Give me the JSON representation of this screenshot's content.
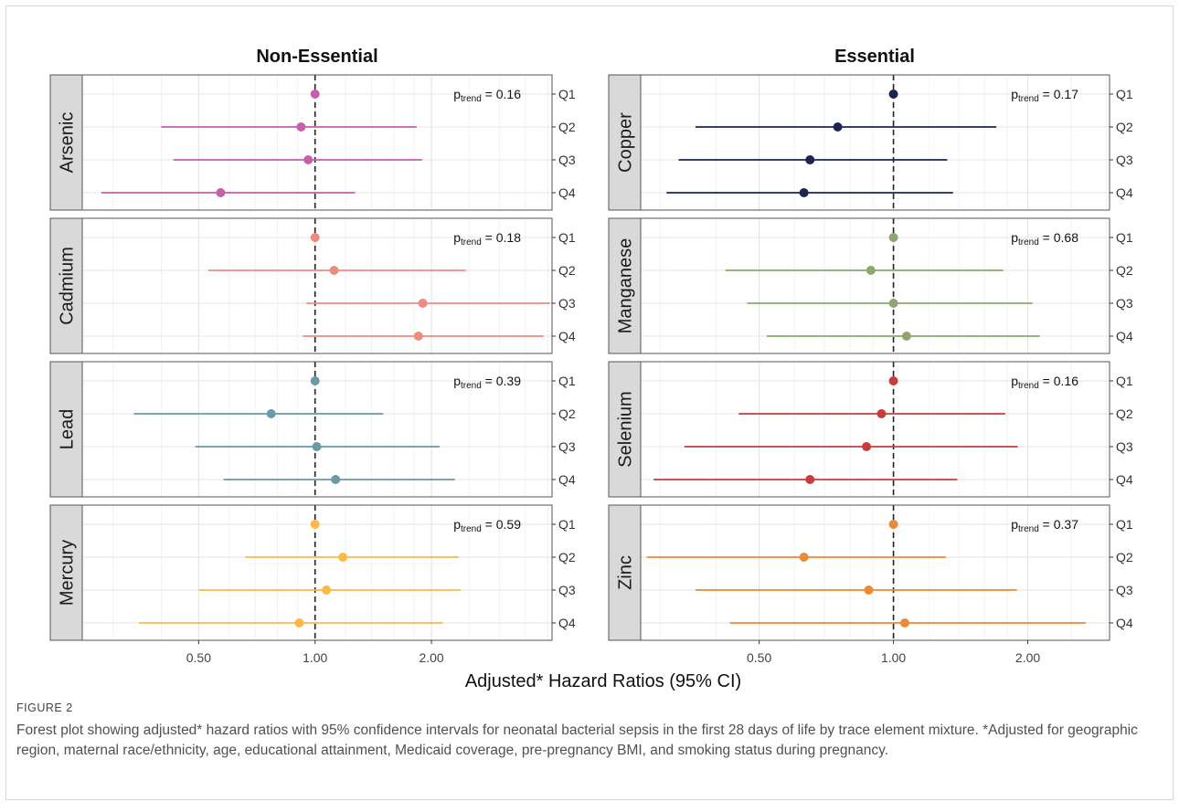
{
  "chart_data": {
    "type": "forest",
    "xlabel": "Adjusted* Hazard Ratios (95% CI)",
    "x_scale": "log",
    "reference_line": 1.0,
    "x_ticks": [
      "0.50",
      "1.00",
      "2.00"
    ],
    "x_tick_values": [
      0.5,
      1.0,
      2.0
    ],
    "row_labels": [
      "Q1",
      "Q2",
      "Q3",
      "Q4"
    ],
    "grid": true,
    "groups": [
      {
        "title": "Non-Essential",
        "xlim": [
          0.25,
          4.1
        ],
        "panels": [
          {
            "strip": "Arsenic",
            "ptrend_label": "p",
            "ptrend_sub": "trend",
            "ptrend_value": " = 0.16",
            "color": "#c85fae",
            "estimates": [
              1.0,
              0.92,
              0.96,
              0.57
            ],
            "lower": [
              null,
              0.4,
              0.43,
              0.28
            ],
            "upper": [
              null,
              1.83,
              1.89,
              1.27
            ]
          },
          {
            "strip": "Cadmium",
            "ptrend_label": "p",
            "ptrend_sub": "trend",
            "ptrend_value": " = 0.18",
            "color": "#ee8b80",
            "estimates": [
              1.0,
              1.12,
              1.9,
              1.85
            ],
            "lower": [
              null,
              0.53,
              0.95,
              0.93
            ],
            "upper": [
              null,
              2.45,
              4.05,
              3.9
            ]
          },
          {
            "strip": "Lead",
            "ptrend_label": "p",
            "ptrend_sub": "trend",
            "ptrend_value": " = 0.39",
            "color": "#6a9aa3",
            "estimates": [
              1.0,
              0.77,
              1.01,
              1.13
            ],
            "lower": [
              null,
              0.34,
              0.49,
              0.58
            ],
            "upper": [
              null,
              1.5,
              2.1,
              2.3
            ]
          },
          {
            "strip": "Mercury",
            "ptrend_label": "p",
            "ptrend_sub": "trend",
            "ptrend_value": " = 0.59",
            "color": "#f9bb45",
            "estimates": [
              1.0,
              1.18,
              1.07,
              0.91
            ],
            "lower": [
              null,
              0.66,
              0.5,
              0.35
            ],
            "upper": [
              null,
              2.35,
              2.38,
              2.14
            ]
          }
        ]
      },
      {
        "title": "Essential",
        "xlim": [
          0.27,
          3.05
        ],
        "panels": [
          {
            "strip": "Copper",
            "ptrend_label": "p",
            "ptrend_sub": "trend",
            "ptrend_value": " = 0.17",
            "color": "#1b2550",
            "estimates": [
              1.0,
              0.75,
              0.65,
              0.63
            ],
            "lower": [
              null,
              0.36,
              0.33,
              0.31
            ],
            "upper": [
              null,
              1.7,
              1.32,
              1.36
            ]
          },
          {
            "strip": "Manganese",
            "ptrend_label": "p",
            "ptrend_sub": "trend",
            "ptrend_value": " = 0.68",
            "color": "#8ca76f",
            "estimates": [
              1.0,
              0.89,
              1.0,
              1.07
            ],
            "lower": [
              null,
              0.42,
              0.47,
              0.52
            ],
            "upper": [
              null,
              1.76,
              2.05,
              2.13
            ]
          },
          {
            "strip": "Selenium",
            "ptrend_label": "p",
            "ptrend_sub": "trend",
            "ptrend_value": " = 0.16",
            "color": "#c73d3d",
            "estimates": [
              1.0,
              0.94,
              0.87,
              0.65
            ],
            "lower": [
              null,
              0.45,
              0.34,
              0.29
            ],
            "upper": [
              null,
              1.78,
              1.9,
              1.39
            ]
          },
          {
            "strip": "Zinc",
            "ptrend_label": "p",
            "ptrend_sub": "trend",
            "ptrend_value": " = 0.37",
            "color": "#ec8a35",
            "estimates": [
              1.0,
              0.63,
              0.88,
              1.06
            ],
            "lower": [
              null,
              0.28,
              0.36,
              0.43
            ],
            "upper": [
              null,
              1.31,
              1.89,
              2.7
            ]
          }
        ]
      }
    ]
  },
  "caption": {
    "label": "FIGURE 2",
    "text": "Forest plot showing adjusted* hazard ratios with 95% confidence intervals for neonatal bacterial sepsis in the first 28 days of life by trace element mixture. *Adjusted for geographic region, maternal race/ethnicity, age, educational attainment, Medicaid coverage, pre-pregnancy BMI, and smoking status during pregnancy."
  }
}
